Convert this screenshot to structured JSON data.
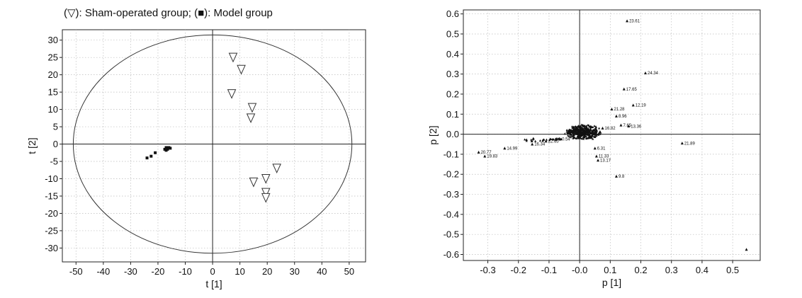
{
  "title": "(▽): Sham-operated group; (■): Model group",
  "chart_data": [
    {
      "type": "scatter",
      "title": "",
      "xlabel": "t [1]",
      "ylabel": "t [2]",
      "xlim": [
        -55,
        56
      ],
      "ylim": [
        -34,
        33
      ],
      "xticks": [
        -50,
        -40,
        -30,
        -20,
        -10,
        0,
        10,
        20,
        30,
        40,
        50
      ],
      "yticks": [
        -30,
        -25,
        -20,
        -15,
        -10,
        -5,
        0,
        5,
        10,
        15,
        20,
        25,
        30
      ],
      "grid": true,
      "ellipse": {
        "center": [
          0,
          0
        ],
        "rx": 51,
        "ry": 31.5
      },
      "series": [
        {
          "name": "Sham-operated group",
          "marker": "triangle-down-open",
          "points": [
            [
              7.5,
              25
            ],
            [
              10.5,
              21.5
            ],
            [
              7,
              14.5
            ],
            [
              14.5,
              10.5
            ],
            [
              14,
              7.5
            ],
            [
              23.5,
              -7
            ],
            [
              19.5,
              -10
            ],
            [
              15,
              -11
            ],
            [
              19.5,
              -14
            ],
            [
              19.5,
              -15.5
            ]
          ]
        },
        {
          "name": "Model group",
          "marker": "square-filled",
          "points": [
            [
              -24,
              -4
            ],
            [
              -22.5,
              -3.5
            ],
            [
              -21,
              -2.5
            ],
            [
              -17.5,
              -1.5
            ],
            [
              -17,
              -1
            ],
            [
              -16.5,
              -1.5
            ],
            [
              -16,
              -1
            ],
            [
              -15.5,
              -1.2
            ],
            [
              -17,
              -1.8
            ]
          ]
        }
      ]
    },
    {
      "type": "scatter",
      "title": "",
      "xlabel": "p [1]",
      "ylabel": "p [2]",
      "xlim": [
        -0.38,
        0.59
      ],
      "ylim": [
        -0.63,
        0.62
      ],
      "xticks": [
        -0.3,
        -0.2,
        -0.1,
        -0.0,
        0.1,
        0.2,
        0.3,
        0.4,
        0.5
      ],
      "xtick_labels": [
        "-0.3",
        "-0.2",
        "-0.1",
        "-0.0",
        "0.1",
        "0.2",
        "0.3",
        "0.4",
        "0.5"
      ],
      "yticks": [
        -0.6,
        -0.5,
        -0.4,
        -0.3,
        -0.2,
        -0.1,
        0.0,
        0.1,
        0.2,
        0.3,
        0.4,
        0.5,
        0.6
      ],
      "ytick_labels": [
        "-0.6",
        "-0.5",
        "-0.4",
        "-0.3",
        "-0.2",
        "-0.1",
        "0.0",
        "0.1",
        "0.2",
        "0.3",
        "0.4",
        "0.5",
        "0.6"
      ],
      "grid": true,
      "labeled_points": [
        {
          "x": 0.155,
          "y": 0.565,
          "label": "23.61"
        },
        {
          "x": 0.215,
          "y": 0.305,
          "label": "24.34"
        },
        {
          "x": 0.145,
          "y": 0.225,
          "label": "17.65"
        },
        {
          "x": 0.175,
          "y": 0.145,
          "label": "12.19"
        },
        {
          "x": 0.105,
          "y": 0.125,
          "label": "21.28"
        },
        {
          "x": 0.12,
          "y": 0.09,
          "label": "8.96"
        },
        {
          "x": 0.135,
          "y": 0.045,
          "label": "7.65"
        },
        {
          "x": 0.16,
          "y": 0.04,
          "label": "13.36"
        },
        {
          "x": 0.075,
          "y": 0.03,
          "label": "16.82"
        },
        {
          "x": 0.335,
          "y": -0.045,
          "label": "21.89"
        },
        {
          "x": 0.05,
          "y": -0.07,
          "label": "6.31"
        },
        {
          "x": 0.055,
          "y": -0.11,
          "label": "11.33"
        },
        {
          "x": 0.06,
          "y": -0.13,
          "label": "13.17"
        },
        {
          "x": 0.12,
          "y": -0.21,
          "label": "9.8"
        },
        {
          "x": -0.245,
          "y": -0.07,
          "label": "14.99"
        },
        {
          "x": -0.33,
          "y": -0.09,
          "label": "20.77"
        },
        {
          "x": -0.31,
          "y": -0.11,
          "label": "19.83"
        },
        {
          "x": -0.155,
          "y": -0.05,
          "label": "16.34"
        },
        {
          "x": -0.11,
          "y": -0.035,
          "label": "22.65"
        },
        {
          "x": -0.065,
          "y": -0.025,
          "label": "0.54"
        }
      ],
      "unlabeled_points": [
        {
          "x": 0.545,
          "y": -0.575
        }
      ]
    }
  ]
}
